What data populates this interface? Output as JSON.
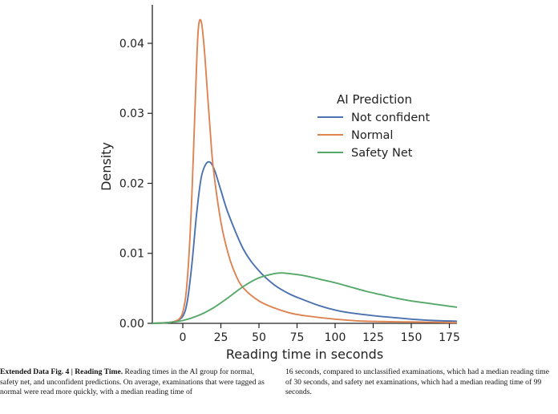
{
  "chart_data": {
    "type": "line",
    "xlabel": "Reading time in seconds",
    "ylabel": "Density",
    "xlim": [
      -20,
      180
    ],
    "ylim": [
      0,
      0.0455
    ],
    "xticks": [
      "0",
      "25",
      "50",
      "75",
      "100",
      "125",
      "150",
      "175"
    ],
    "yticks": [
      "0.00",
      "0.01",
      "0.02",
      "0.03",
      "0.04"
    ],
    "grid": false,
    "legend": {
      "title": "AI Prediction",
      "placement": "center-right"
    },
    "series": [
      {
        "name": "Not confident",
        "color": "#4c72b0",
        "x": [
          -20,
          -10,
          -5,
          0,
          3,
          6,
          9,
          12,
          15,
          18,
          21,
          25,
          30,
          40,
          50,
          60,
          70,
          80,
          90,
          100,
          110,
          125,
          140,
          150,
          165,
          180
        ],
        "y": [
          0,
          0.0001,
          0.0003,
          0.001,
          0.0032,
          0.0085,
          0.0155,
          0.0207,
          0.0227,
          0.023,
          0.0218,
          0.019,
          0.0156,
          0.0105,
          0.0075,
          0.0055,
          0.0042,
          0.0033,
          0.0025,
          0.0019,
          0.0015,
          0.0011,
          0.0008,
          0.0006,
          0.0004,
          0.0003
        ]
      },
      {
        "name": "Normal",
        "color": "#dd8452",
        "x": [
          -20,
          -10,
          -5,
          -2,
          0,
          2,
          4,
          6,
          8,
          10,
          12,
          14,
          16,
          18,
          20,
          25,
          30,
          35,
          40,
          50,
          60,
          70,
          80,
          100,
          120,
          150,
          180
        ],
        "y": [
          0,
          0.0001,
          0.0003,
          0.0007,
          0.0016,
          0.004,
          0.0095,
          0.0185,
          0.0305,
          0.0415,
          0.0432,
          0.0395,
          0.0335,
          0.0275,
          0.0222,
          0.0145,
          0.0098,
          0.0068,
          0.005,
          0.0032,
          0.0022,
          0.0015,
          0.0011,
          0.0006,
          0.0003,
          0.0002,
          0.0001
        ]
      },
      {
        "name": "Safety Net",
        "color": "#55a868",
        "x": [
          -20,
          -10,
          0,
          10,
          20,
          30,
          40,
          50,
          60,
          65,
          70,
          80,
          90,
          100,
          110,
          120,
          130,
          140,
          150,
          160,
          170,
          180
        ],
        "y": [
          0,
          0.0001,
          0.0004,
          0.0011,
          0.0022,
          0.0037,
          0.0053,
          0.0065,
          0.0071,
          0.0072,
          0.0071,
          0.0068,
          0.0063,
          0.0058,
          0.0052,
          0.0046,
          0.0041,
          0.0036,
          0.0032,
          0.0029,
          0.0026,
          0.0023
        ]
      }
    ]
  },
  "caption": {
    "left_bold": "Extended Data Fig. 4 | Reading Time.",
    "left_text": " Reading times in the AI group for normal, safety net, and unconfident predictions. On average, examinations that were tagged as normal were read more quickly, with a median reading time of",
    "right_text": "16 seconds, compared to unclassified examinations, which had a median reading time of 30 seconds, and safety net examinations, which had a median reading time of 99 seconds."
  }
}
